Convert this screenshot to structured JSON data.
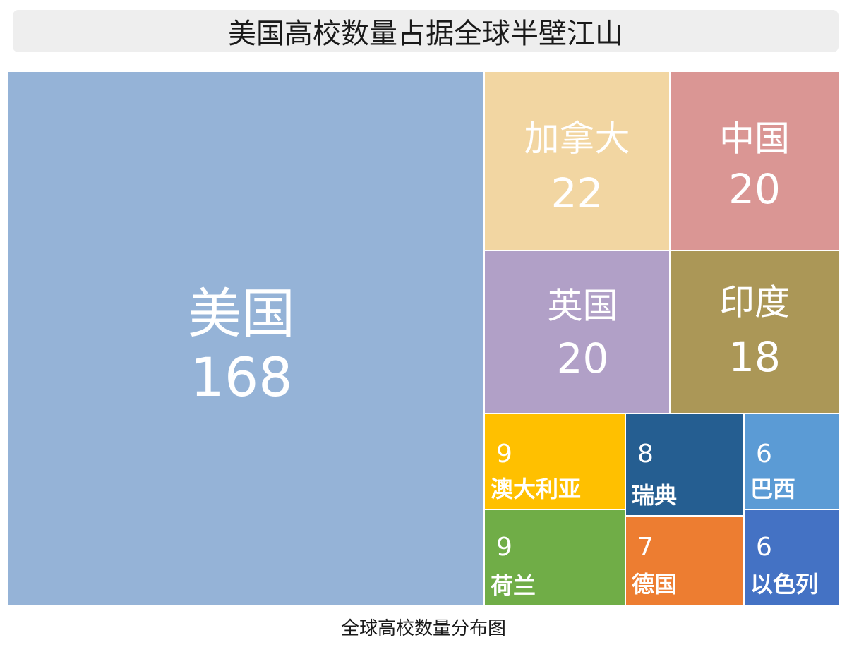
{
  "title": "美国高校数量占据全球半壁江山",
  "caption": "全球高校数量分布图",
  "chart_data": {
    "type": "treemap",
    "items": [
      {
        "name": "美国",
        "value": 168,
        "color": "#95b3d7"
      },
      {
        "name": "加拿大",
        "value": 22,
        "color": "#f2d6a2"
      },
      {
        "name": "中国",
        "value": 20,
        "color": "#da9694"
      },
      {
        "name": "英国",
        "value": 20,
        "color": "#b1a0c7"
      },
      {
        "name": "印度",
        "value": 18,
        "color": "#ab9757"
      },
      {
        "name": "澳大利亚",
        "value": 9,
        "color": "#ffc000"
      },
      {
        "name": "瑞典",
        "value": 8,
        "color": "#255e91"
      },
      {
        "name": "巴西",
        "value": 6,
        "color": "#5b9bd5"
      },
      {
        "name": "荷兰",
        "value": 9,
        "color": "#70ad47"
      },
      {
        "name": "德国",
        "value": 7,
        "color": "#ed7d31"
      },
      {
        "name": "以色列",
        "value": 6,
        "color": "#4472c4"
      }
    ]
  }
}
